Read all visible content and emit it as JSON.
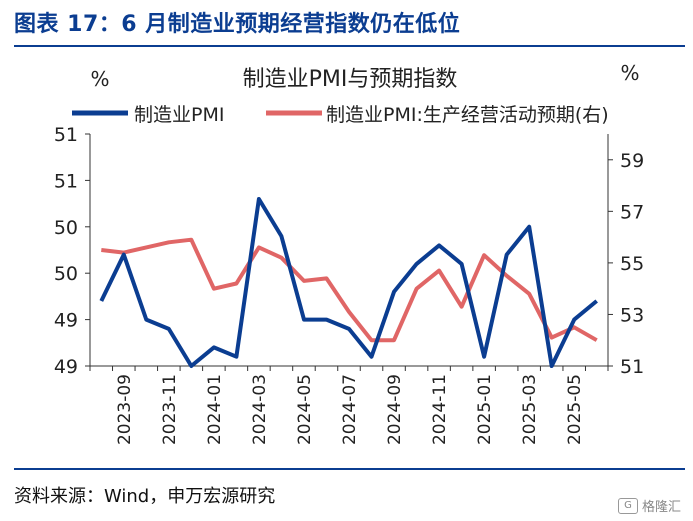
{
  "figure_title": "图表 17：6 月制造业预期经营指数仍在低位",
  "source": "资料来源：Wind，申万宏源研究",
  "watermark": "格隆汇",
  "colors": {
    "brand": "#0b3d91",
    "series1": "#0b3d91",
    "series2": "#e06666"
  },
  "chart_data": {
    "type": "line",
    "title": "制造业PMI与预期指数",
    "left_unit": "%",
    "right_unit": "%",
    "ylim_left": [
      49,
      51.5
    ],
    "ylim_right": [
      51,
      60
    ],
    "left_ticks": [
      "49",
      "49",
      "50",
      "50",
      "51",
      "51"
    ],
    "right_ticks": [
      "51",
      "53",
      "55",
      "57",
      "59"
    ],
    "x_tick_labels": [
      "2023-09",
      "2023-11",
      "2024-01",
      "2024-03",
      "2024-05",
      "2024-07",
      "2024-09",
      "2024-11",
      "2025-01",
      "2025-03",
      "2025-05"
    ],
    "x": [
      "2023-08",
      "2023-09",
      "2023-10",
      "2023-11",
      "2023-12",
      "2024-01",
      "2024-02",
      "2024-03",
      "2024-04",
      "2024-05",
      "2024-06",
      "2024-07",
      "2024-08",
      "2024-09",
      "2024-10",
      "2024-11",
      "2024-12",
      "2025-01",
      "2025-02",
      "2025-03",
      "2025-04",
      "2025-05",
      "2025-06"
    ],
    "series": [
      {
        "name": "制造业PMI",
        "axis": "left",
        "values": [
          49.7,
          50.2,
          49.5,
          49.4,
          49.0,
          49.2,
          49.1,
          50.8,
          50.4,
          49.5,
          49.5,
          49.4,
          49.1,
          49.8,
          50.1,
          50.3,
          50.1,
          49.1,
          50.2,
          50.5,
          49.0,
          49.5,
          49.7
        ]
      },
      {
        "name": "制造业PMI:生产经营活动预期(右)",
        "axis": "right",
        "values": [
          55.5,
          55.4,
          55.6,
          55.8,
          55.9,
          54.0,
          54.2,
          55.6,
          55.2,
          54.3,
          54.4,
          53.1,
          52.0,
          52.0,
          54.0,
          54.7,
          53.3,
          55.3,
          54.5,
          53.8,
          52.1,
          52.5,
          52.0
        ]
      }
    ],
    "grid": false,
    "legend_position": "top"
  }
}
